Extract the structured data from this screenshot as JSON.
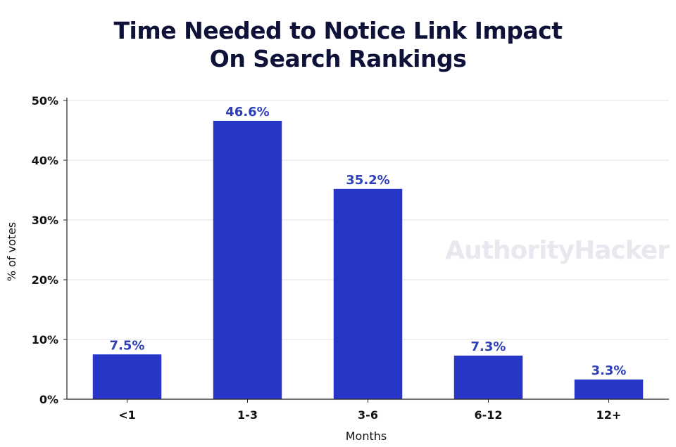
{
  "title_lines": [
    "Time Needed to Notice Link Impact",
    "On Search Rankings"
  ],
  "watermark": "AuthorityHacker",
  "colors": {
    "bar": "#2736c6",
    "label": "#2d3fb8",
    "grid": "#e3e3e3",
    "axis": "#222222"
  },
  "chart_data": {
    "type": "bar",
    "title": "Time Needed to Notice Link Impact On Search Rankings",
    "xlabel": "Months",
    "ylabel": "% of votes",
    "categories": [
      "<1",
      "1-3",
      "3-6",
      "6-12",
      "12+"
    ],
    "values": [
      7.5,
      46.6,
      35.2,
      7.3,
      3.3
    ],
    "value_labels": [
      "7.5%",
      "46.6%",
      "35.2%",
      "7.3%",
      "3.3%"
    ],
    "ylim": [
      0,
      50
    ],
    "yticks": [
      0,
      10,
      20,
      30,
      40,
      50
    ],
    "ytick_labels": [
      "0%",
      "10%",
      "20%",
      "30%",
      "40%",
      "50%"
    ],
    "grid": true,
    "legend": "none"
  }
}
